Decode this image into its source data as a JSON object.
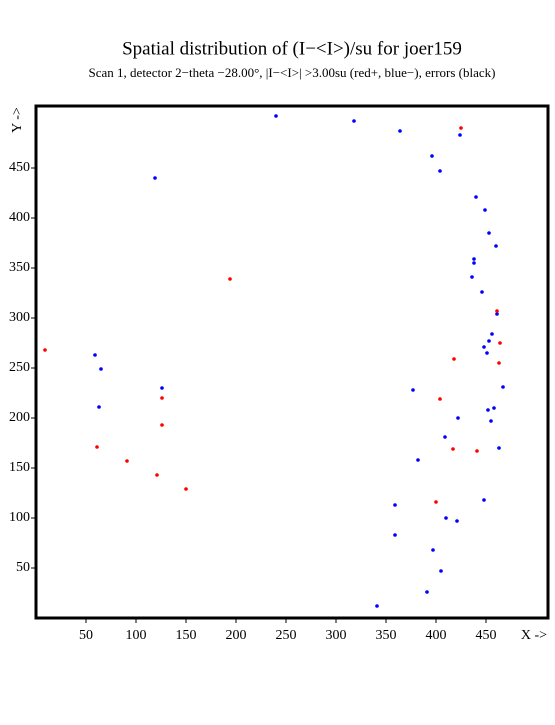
{
  "chart_data": {
    "type": "scatter",
    "title": "Spatial distribution of (I−<I>)/su for joer159",
    "subtitle": "Scan  1, detector 2−theta −28.00°, |I−<I>| >3.00su (red+, blue−), errors (black)",
    "x_label": "X ->",
    "y_label": "Y ->",
    "xlim": [
      0,
      512
    ],
    "ylim": [
      0,
      512
    ],
    "xticks": [
      50,
      100,
      150,
      200,
      250,
      300,
      350,
      400,
      450
    ],
    "yticks": [
      50,
      100,
      150,
      200,
      250,
      300,
      350,
      400,
      450
    ],
    "series": [
      {
        "color": "#0000ff",
        "x": [
          240,
          318,
          364,
          424,
          396,
          404,
          119,
          440,
          449,
          453,
          460,
          438,
          438,
          436,
          446,
          461,
          456,
          453,
          448,
          451,
          59,
          65,
          126,
          377,
          467,
          63,
          458,
          452,
          422,
          455,
          409,
          463,
          382,
          359,
          448,
          410,
          421,
          359,
          397,
          405,
          391,
          341
        ],
        "values": [
          502,
          497,
          487,
          483,
          462,
          447,
          440,
          421,
          408,
          385,
          372,
          359,
          355,
          341,
          326,
          304,
          284,
          277,
          271,
          265,
          263,
          249,
          230,
          228,
          231,
          211,
          210,
          208,
          200,
          197,
          181,
          170,
          158,
          113,
          118,
          100,
          97,
          83,
          68,
          47,
          26,
          12
        ]
      },
      {
        "color": "#ff0000",
        "x": [
          425,
          194,
          461,
          9,
          464,
          418,
          463,
          126,
          404,
          126,
          61,
          417,
          441,
          91,
          121,
          150,
          400
        ],
        "values": [
          490,
          339,
          307,
          268,
          275,
          259,
          255,
          220,
          219,
          193,
          171,
          169,
          167,
          157,
          143,
          129,
          116
        ]
      }
    ]
  }
}
